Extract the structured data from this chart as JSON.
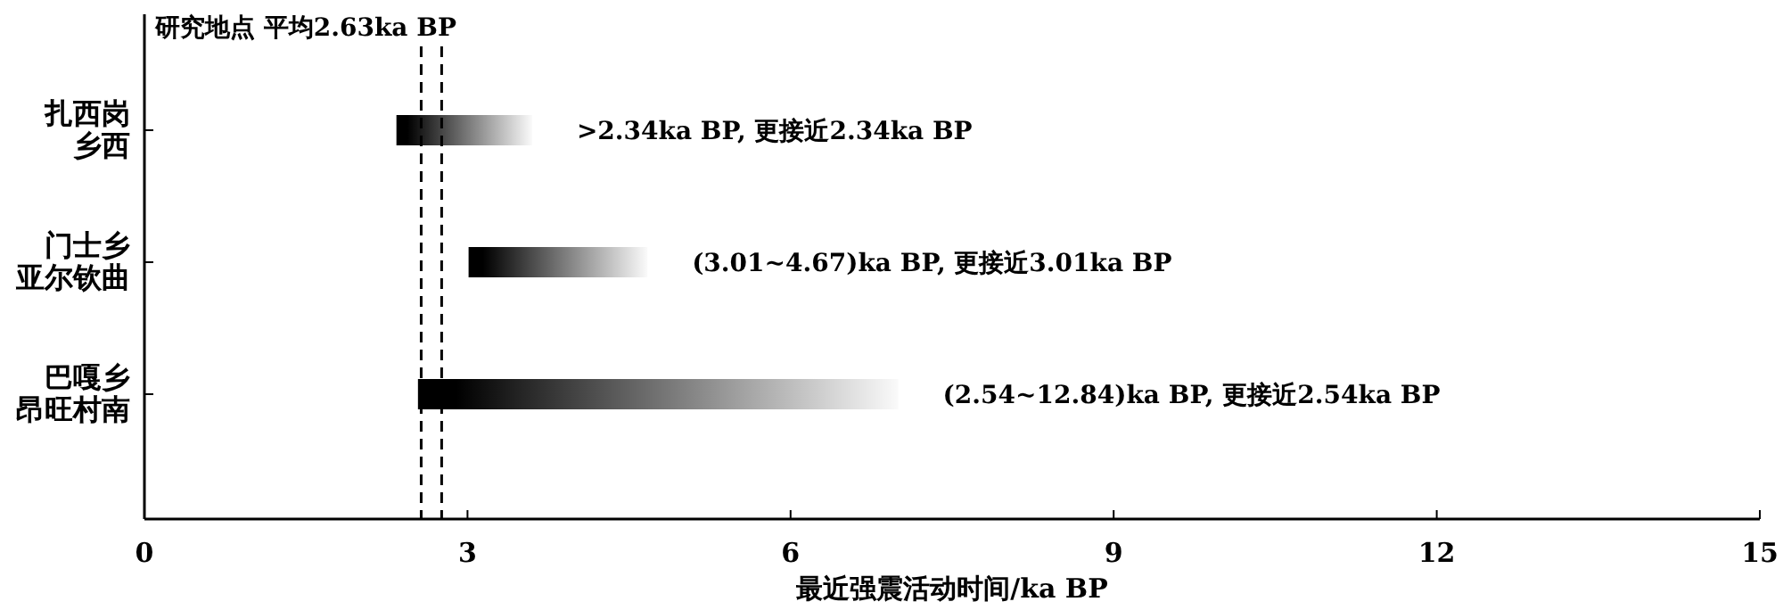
{
  "chart_data": {
    "type": "bar",
    "orientation": "horizontal",
    "categories": [
      "扎西岗乡西",
      "门士乡亚尔钦曲",
      "巴嘎乡昂旺村南"
    ],
    "base": [
      2.34,
      3.01,
      2.54
    ],
    "values": [
      1.26,
      1.66,
      4.46
    ],
    "color": "#000000",
    "xlim": [
      0,
      15
    ],
    "xticks": [
      0,
      3,
      6,
      9,
      12,
      15
    ],
    "xlabel": "最近强震活动时间/ka BP",
    "ref_lines": [
      {
        "axis": "x",
        "value": 2.57,
        "label": "研究地点 平均2.63ka BP",
        "line_style": "dashed"
      },
      {
        "axis": "x",
        "value": 2.76,
        "line_style": "dashed"
      }
    ],
    "annotations": [
      ">2.34ka BP, 更接近2.34ka BP",
      "(3.01~4.67)ka BP, 更接近3.01ka BP",
      "(2.54~12.84)ka BP, 更接近2.54ka BP"
    ]
  }
}
